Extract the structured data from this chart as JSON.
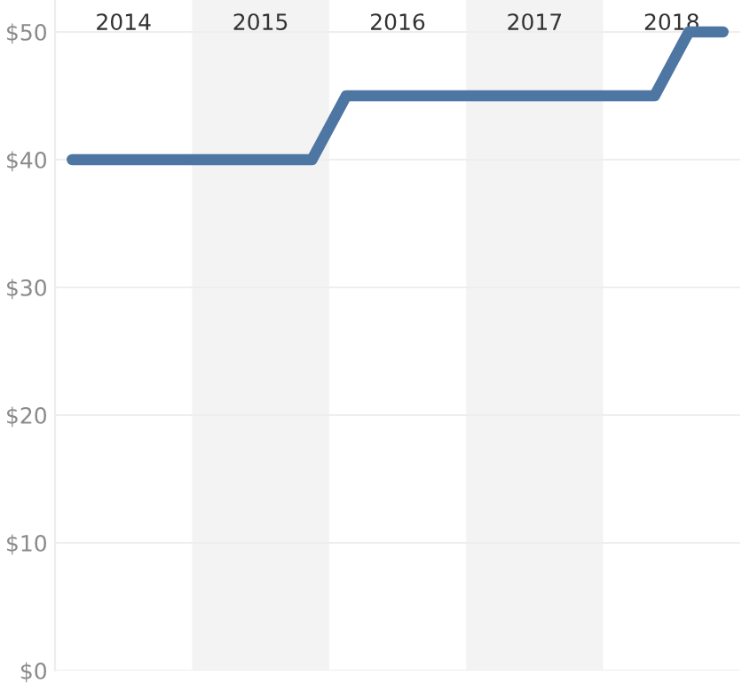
{
  "chart_data": {
    "type": "line",
    "x": [
      2013.625,
      2013.875,
      2014.125,
      2014.375,
      2014.625,
      2014.875,
      2015.125,
      2015.375,
      2015.625,
      2015.875,
      2016.125,
      2016.375,
      2016.625,
      2016.875,
      2017.125,
      2017.375,
      2017.625,
      2017.875,
      2018.125,
      2018.375
    ],
    "series": [
      {
        "color": "#4e76a3",
        "values": [
          40,
          40,
          40,
          40,
          40,
          40,
          40,
          40,
          45,
          45,
          45,
          45,
          45,
          45,
          45,
          45,
          45,
          45,
          50,
          50
        ]
      }
    ],
    "xlim": [
      2013.5,
      2018.5
    ],
    "xticks": [
      2014,
      2015,
      2016,
      2017,
      2018
    ],
    "ylim": [
      0,
      52.5
    ],
    "yticks": [
      {
        "value": 0,
        "label": "$0"
      },
      {
        "value": 10,
        "label": "$10"
      },
      {
        "value": 20,
        "label": "$20"
      },
      {
        "value": 30,
        "label": "$30"
      },
      {
        "value": 40,
        "label": "$40"
      },
      {
        "value": 50,
        "label": "$50"
      }
    ],
    "bands": [
      {
        "axis": "x",
        "from": 2014.5,
        "to": 2015.5,
        "color": "#f3f3f3"
      },
      {
        "axis": "x",
        "from": 2016.5,
        "to": 2017.5,
        "color": "#f3f3f3"
      }
    ],
    "grid": "y",
    "legend": false,
    "marker": "none",
    "line_style": "solid"
  }
}
